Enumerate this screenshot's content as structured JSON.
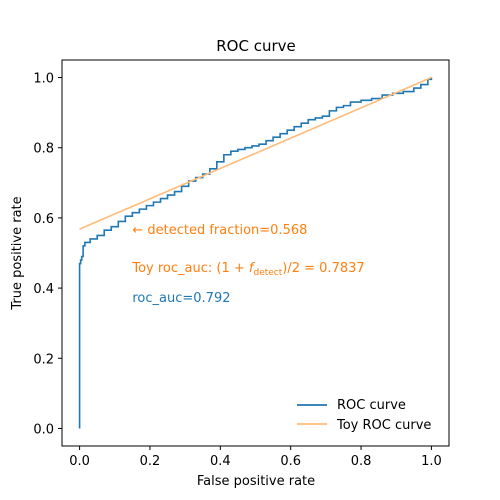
{
  "chart_data": {
    "type": "line",
    "title": "ROC curve",
    "xlabel": "False positive rate",
    "ylabel": "True positive rate",
    "xlim": [
      -0.05,
      1.05
    ],
    "ylim": [
      -0.05,
      1.05
    ],
    "xticks": [
      "0.0",
      "0.2",
      "0.4",
      "0.6",
      "0.8",
      "1.0"
    ],
    "yticks": [
      "0.0",
      "0.2",
      "0.4",
      "0.6",
      "0.8",
      "1.0"
    ],
    "grid": false,
    "legend_position": "lower-right",
    "series": [
      {
        "name": "ROC curve",
        "color": "#1f77b4",
        "style": "step",
        "x": [
          0.0,
          0.0,
          0.003,
          0.006,
          0.01,
          0.015,
          0.03,
          0.05,
          0.07,
          0.09,
          0.11,
          0.13,
          0.15,
          0.17,
          0.19,
          0.21,
          0.23,
          0.25,
          0.27,
          0.29,
          0.31,
          0.33,
          0.35,
          0.37,
          0.39,
          0.41,
          0.43,
          0.45,
          0.47,
          0.49,
          0.51,
          0.53,
          0.55,
          0.57,
          0.59,
          0.61,
          0.63,
          0.65,
          0.67,
          0.69,
          0.71,
          0.73,
          0.75,
          0.77,
          0.8,
          0.83,
          0.86,
          0.89,
          0.92,
          0.95,
          0.97,
          0.99,
          1.0
        ],
        "y": [
          0.0,
          0.47,
          0.48,
          0.49,
          0.52,
          0.53,
          0.54,
          0.55,
          0.565,
          0.575,
          0.59,
          0.605,
          0.615,
          0.625,
          0.635,
          0.645,
          0.655,
          0.665,
          0.675,
          0.69,
          0.705,
          0.715,
          0.725,
          0.74,
          0.76,
          0.78,
          0.79,
          0.795,
          0.8,
          0.805,
          0.81,
          0.82,
          0.83,
          0.84,
          0.85,
          0.86,
          0.87,
          0.88,
          0.885,
          0.89,
          0.905,
          0.915,
          0.92,
          0.93,
          0.935,
          0.94,
          0.95,
          0.955,
          0.96,
          0.97,
          0.98,
          0.995,
          1.0
        ]
      },
      {
        "name": "Toy ROC curve",
        "color": "#ffbb78",
        "style": "line",
        "x": [
          0.0,
          1.0
        ],
        "y": [
          0.568,
          1.0
        ]
      }
    ],
    "annotations": [
      {
        "text": "←  detected fraction=0.568",
        "x": 0.15,
        "y": 0.568,
        "color": "#ff7f0e"
      },
      {
        "text_pre": "Toy roc_auc: ",
        "math_a": "(1 + ",
        "math_f": "f",
        "math_sub": "detect",
        "math_b": ")/2 = 0.7837",
        "x": 0.15,
        "y": 0.46,
        "color": "#ff7f0e"
      },
      {
        "text": "roc_auc=0.792",
        "x": 0.15,
        "y": 0.375,
        "color": "#1f77b4"
      }
    ]
  }
}
